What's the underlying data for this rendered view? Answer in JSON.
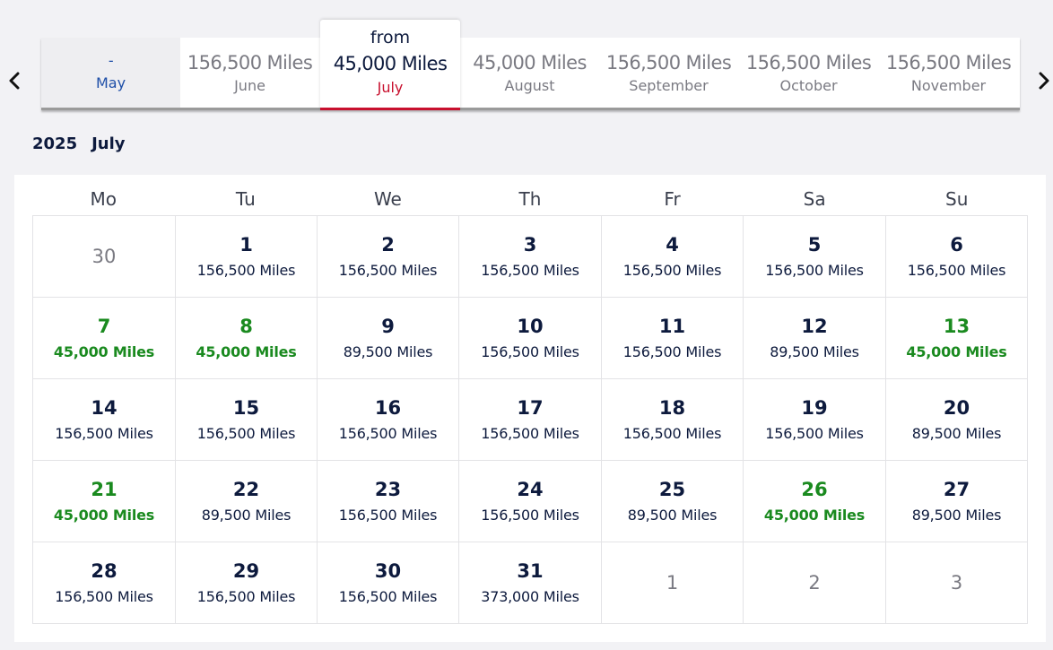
{
  "nav": {
    "prev_icon": "chevron-left-icon",
    "next_icon": "chevron-right-icon"
  },
  "months": [
    {
      "price": "-",
      "name": "May",
      "state": "disabled"
    },
    {
      "price": "156,500 Miles",
      "name": "June",
      "state": "normal"
    },
    {
      "from": "from",
      "price": "45,000 Miles",
      "name": "July",
      "state": "selected"
    },
    {
      "price": "45,000 Miles",
      "name": "August",
      "state": "normal"
    },
    {
      "price": "156,500 Miles",
      "name": "September",
      "state": "normal"
    },
    {
      "price": "156,500 Miles",
      "name": "October",
      "state": "normal"
    },
    {
      "price": "156,500 Miles",
      "name": "November",
      "state": "normal"
    }
  ],
  "heading": {
    "year": "2025",
    "month": "July"
  },
  "weekdays": [
    "Mo",
    "Tu",
    "We",
    "Th",
    "Fr",
    "Sa",
    "Su"
  ],
  "days": [
    {
      "day": "30",
      "miles": "",
      "type": "outside"
    },
    {
      "day": "1",
      "miles": "156,500 Miles",
      "type": "normal"
    },
    {
      "day": "2",
      "miles": "156,500 Miles",
      "type": "normal"
    },
    {
      "day": "3",
      "miles": "156,500 Miles",
      "type": "normal"
    },
    {
      "day": "4",
      "miles": "156,500 Miles",
      "type": "normal"
    },
    {
      "day": "5",
      "miles": "156,500 Miles",
      "type": "normal"
    },
    {
      "day": "6",
      "miles": "156,500 Miles",
      "type": "normal"
    },
    {
      "day": "7",
      "miles": "45,000 Miles",
      "type": "low"
    },
    {
      "day": "8",
      "miles": "45,000 Miles",
      "type": "low"
    },
    {
      "day": "9",
      "miles": "89,500 Miles",
      "type": "normal"
    },
    {
      "day": "10",
      "miles": "156,500 Miles",
      "type": "normal"
    },
    {
      "day": "11",
      "miles": "156,500 Miles",
      "type": "normal"
    },
    {
      "day": "12",
      "miles": "89,500 Miles",
      "type": "normal"
    },
    {
      "day": "13",
      "miles": "45,000 Miles",
      "type": "low"
    },
    {
      "day": "14",
      "miles": "156,500 Miles",
      "type": "normal"
    },
    {
      "day": "15",
      "miles": "156,500 Miles",
      "type": "normal"
    },
    {
      "day": "16",
      "miles": "156,500 Miles",
      "type": "normal"
    },
    {
      "day": "17",
      "miles": "156,500 Miles",
      "type": "normal"
    },
    {
      "day": "18",
      "miles": "156,500 Miles",
      "type": "normal"
    },
    {
      "day": "19",
      "miles": "156,500 Miles",
      "type": "normal"
    },
    {
      "day": "20",
      "miles": "89,500 Miles",
      "type": "normal"
    },
    {
      "day": "21",
      "miles": "45,000 Miles",
      "type": "low"
    },
    {
      "day": "22",
      "miles": "89,500 Miles",
      "type": "normal"
    },
    {
      "day": "23",
      "miles": "156,500 Miles",
      "type": "normal"
    },
    {
      "day": "24",
      "miles": "156,500 Miles",
      "type": "normal"
    },
    {
      "day": "25",
      "miles": "89,500 Miles",
      "type": "normal"
    },
    {
      "day": "26",
      "miles": "45,000 Miles",
      "type": "low"
    },
    {
      "day": "27",
      "miles": "89,500 Miles",
      "type": "normal"
    },
    {
      "day": "28",
      "miles": "156,500 Miles",
      "type": "normal"
    },
    {
      "day": "29",
      "miles": "156,500 Miles",
      "type": "normal"
    },
    {
      "day": "30",
      "miles": "156,500 Miles",
      "type": "normal"
    },
    {
      "day": "31",
      "miles": "373,000 Miles",
      "type": "normal"
    },
    {
      "day": "1",
      "miles": "",
      "type": "outside"
    },
    {
      "day": "2",
      "miles": "",
      "type": "outside"
    },
    {
      "day": "3",
      "miles": "",
      "type": "outside"
    }
  ],
  "colors": {
    "low_price": "#1a8a1f",
    "selected_accent": "#c8102e",
    "text": "#0d1a3d",
    "disabled_text": "#1f4fa8"
  }
}
